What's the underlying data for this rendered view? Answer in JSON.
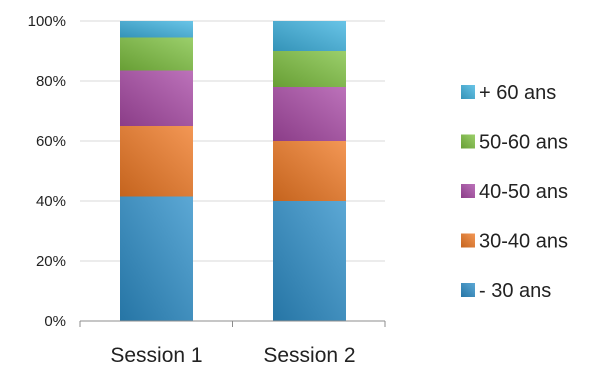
{
  "chart_data": {
    "type": "bar",
    "stacked": true,
    "percent_stacked": true,
    "title": "",
    "xlabel": "",
    "ylabel": "",
    "categories": [
      "Session 1",
      "Session 2"
    ],
    "y_ticks": [
      "0%",
      "20%",
      "40%",
      "60%",
      "80%",
      "100%"
    ],
    "ylim": [
      0,
      100
    ],
    "grid": true,
    "legend_position": "right",
    "series": [
      {
        "name": "- 30 ans",
        "values": [
          41.5,
          40.0
        ],
        "color": "#2e8fc9"
      },
      {
        "name": "30-40 ans",
        "values": [
          23.5,
          20.0
        ],
        "color": "#f07a25"
      },
      {
        "name": "40-50 ans",
        "values": [
          18.5,
          18.0
        ],
        "color": "#a94aa6"
      },
      {
        "name": "50-60 ans",
        "values": [
          11.0,
          12.0
        ],
        "color": "#7fc241"
      },
      {
        "name": "+ 60 ans",
        "values": [
          5.5,
          10.0
        ],
        "color": "#3fb3e0"
      }
    ]
  }
}
